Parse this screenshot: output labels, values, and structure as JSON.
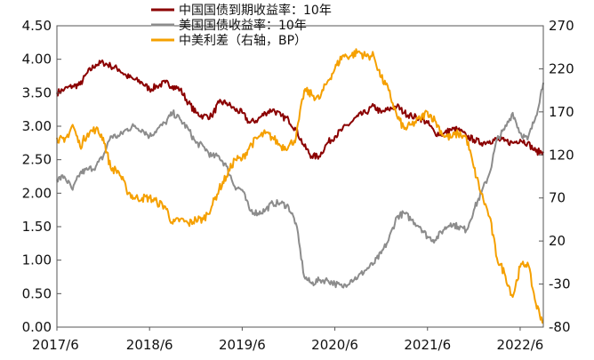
{
  "chart_data": {
    "type": "line",
    "title": "",
    "legend": {
      "placement": "top-center",
      "entries": [
        {
          "name": "中国国债到期收益率：10年",
          "color": "#8B0000"
        },
        {
          "name": "美国国债收益率：10年",
          "color": "#8C8C8C"
        },
        {
          "name": "中美利差（右轴，BP）",
          "color": "#F5A000"
        }
      ]
    },
    "x_tick_labels": [
      "2017/6",
      "2018/6",
      "2019/6",
      "2020/6",
      "2021/6",
      "2022/6"
    ],
    "y_left": {
      "ticks": [
        "0.00",
        "0.50",
        "1.00",
        "1.50",
        "2.00",
        "2.50",
        "3.00",
        "3.50",
        "4.00",
        "4.50"
      ],
      "range": [
        0,
        4.5
      ]
    },
    "y_right": {
      "ticks": [
        "-80",
        "-30",
        "20",
        "70",
        "120",
        "170",
        "220",
        "270"
      ],
      "range": [
        -80,
        270
      ]
    },
    "x_range": [
      2017.5,
      2022.75
    ],
    "grid": false,
    "series": [
      {
        "name": "中国国债到期收益率：10年",
        "color": "#8B0000",
        "axis": "left",
        "points": [
          [
            2017.5,
            3.5
          ],
          [
            2017.58,
            3.55
          ],
          [
            2017.67,
            3.6
          ],
          [
            2017.75,
            3.62
          ],
          [
            2017.83,
            3.8
          ],
          [
            2017.92,
            3.92
          ],
          [
            2018.0,
            3.95
          ],
          [
            2018.08,
            3.9
          ],
          [
            2018.17,
            3.85
          ],
          [
            2018.25,
            3.75
          ],
          [
            2018.33,
            3.7
          ],
          [
            2018.42,
            3.65
          ],
          [
            2018.5,
            3.55
          ],
          [
            2018.58,
            3.6
          ],
          [
            2018.67,
            3.65
          ],
          [
            2018.75,
            3.6
          ],
          [
            2018.83,
            3.55
          ],
          [
            2018.92,
            3.35
          ],
          [
            2019.0,
            3.2
          ],
          [
            2019.08,
            3.15
          ],
          [
            2019.17,
            3.15
          ],
          [
            2019.25,
            3.35
          ],
          [
            2019.33,
            3.35
          ],
          [
            2019.42,
            3.25
          ],
          [
            2019.5,
            3.2
          ],
          [
            2019.58,
            3.05
          ],
          [
            2019.67,
            3.1
          ],
          [
            2019.75,
            3.2
          ],
          [
            2019.83,
            3.25
          ],
          [
            2019.92,
            3.15
          ],
          [
            2020.0,
            3.1
          ],
          [
            2020.08,
            2.95
          ],
          [
            2020.17,
            2.7
          ],
          [
            2020.25,
            2.55
          ],
          [
            2020.33,
            2.55
          ],
          [
            2020.42,
            2.75
          ],
          [
            2020.5,
            2.85
          ],
          [
            2020.58,
            2.95
          ],
          [
            2020.67,
            3.05
          ],
          [
            2020.75,
            3.15
          ],
          [
            2020.83,
            3.2
          ],
          [
            2020.92,
            3.3
          ],
          [
            2021.0,
            3.2
          ],
          [
            2021.08,
            3.25
          ],
          [
            2021.17,
            3.3
          ],
          [
            2021.25,
            3.2
          ],
          [
            2021.33,
            3.15
          ],
          [
            2021.42,
            3.12
          ],
          [
            2021.5,
            3.05
          ],
          [
            2021.58,
            2.9
          ],
          [
            2021.67,
            2.88
          ],
          [
            2021.75,
            2.95
          ],
          [
            2021.83,
            2.95
          ],
          [
            2021.92,
            2.85
          ],
          [
            2022.0,
            2.8
          ],
          [
            2022.08,
            2.75
          ],
          [
            2022.17,
            2.78
          ],
          [
            2022.25,
            2.8
          ],
          [
            2022.33,
            2.78
          ],
          [
            2022.42,
            2.75
          ],
          [
            2022.5,
            2.8
          ],
          [
            2022.58,
            2.75
          ],
          [
            2022.67,
            2.62
          ],
          [
            2022.75,
            2.62
          ]
        ]
      },
      {
        "name": "美国国债收益率：10年",
        "color": "#8C8C8C",
        "axis": "left",
        "points": [
          [
            2017.5,
            2.2
          ],
          [
            2017.58,
            2.25
          ],
          [
            2017.67,
            2.05
          ],
          [
            2017.75,
            2.3
          ],
          [
            2017.83,
            2.35
          ],
          [
            2017.92,
            2.4
          ],
          [
            2018.0,
            2.55
          ],
          [
            2018.08,
            2.85
          ],
          [
            2018.17,
            2.85
          ],
          [
            2018.25,
            2.95
          ],
          [
            2018.33,
            3.0
          ],
          [
            2018.42,
            2.95
          ],
          [
            2018.5,
            2.85
          ],
          [
            2018.58,
            2.95
          ],
          [
            2018.67,
            3.05
          ],
          [
            2018.75,
            3.2
          ],
          [
            2018.83,
            3.1
          ],
          [
            2018.92,
            2.95
          ],
          [
            2019.0,
            2.75
          ],
          [
            2019.08,
            2.7
          ],
          [
            2019.17,
            2.55
          ],
          [
            2019.25,
            2.55
          ],
          [
            2019.33,
            2.4
          ],
          [
            2019.42,
            2.1
          ],
          [
            2019.5,
            2.05
          ],
          [
            2019.58,
            1.75
          ],
          [
            2019.67,
            1.7
          ],
          [
            2019.75,
            1.75
          ],
          [
            2019.83,
            1.85
          ],
          [
            2019.92,
            1.85
          ],
          [
            2020.0,
            1.8
          ],
          [
            2020.08,
            1.55
          ],
          [
            2020.17,
            0.75
          ],
          [
            2020.25,
            0.65
          ],
          [
            2020.33,
            0.7
          ],
          [
            2020.42,
            0.7
          ],
          [
            2020.5,
            0.65
          ],
          [
            2020.58,
            0.6
          ],
          [
            2020.67,
            0.7
          ],
          [
            2020.75,
            0.75
          ],
          [
            2020.83,
            0.85
          ],
          [
            2020.92,
            0.95
          ],
          [
            2021.0,
            1.1
          ],
          [
            2021.08,
            1.3
          ],
          [
            2021.17,
            1.65
          ],
          [
            2021.25,
            1.7
          ],
          [
            2021.33,
            1.6
          ],
          [
            2021.42,
            1.5
          ],
          [
            2021.5,
            1.35
          ],
          [
            2021.58,
            1.3
          ],
          [
            2021.67,
            1.45
          ],
          [
            2021.75,
            1.55
          ],
          [
            2021.83,
            1.5
          ],
          [
            2021.92,
            1.45
          ],
          [
            2022.0,
            1.75
          ],
          [
            2022.08,
            2.0
          ],
          [
            2022.17,
            2.3
          ],
          [
            2022.25,
            2.8
          ],
          [
            2022.33,
            2.95
          ],
          [
            2022.42,
            3.2
          ],
          [
            2022.5,
            2.9
          ],
          [
            2022.58,
            2.8
          ],
          [
            2022.67,
            3.15
          ],
          [
            2022.75,
            3.65
          ]
        ]
      },
      {
        "name": "中美利差（右轴，BP）",
        "color": "#F5A000",
        "axis": "right",
        "points": [
          [
            2017.5,
            140
          ],
          [
            2017.58,
            135
          ],
          [
            2017.67,
            155
          ],
          [
            2017.75,
            130
          ],
          [
            2017.83,
            145
          ],
          [
            2017.92,
            150
          ],
          [
            2018.0,
            140
          ],
          [
            2018.08,
            105
          ],
          [
            2018.17,
            100
          ],
          [
            2018.25,
            80
          ],
          [
            2018.33,
            70
          ],
          [
            2018.42,
            70
          ],
          [
            2018.5,
            70
          ],
          [
            2018.58,
            65
          ],
          [
            2018.67,
            60
          ],
          [
            2018.75,
            40
          ],
          [
            2018.83,
            45
          ],
          [
            2018.92,
            40
          ],
          [
            2019.0,
            45
          ],
          [
            2019.08,
            45
          ],
          [
            2019.17,
            60
          ],
          [
            2019.25,
            80
          ],
          [
            2019.33,
            95
          ],
          [
            2019.42,
            115
          ],
          [
            2019.5,
            115
          ],
          [
            2019.58,
            130
          ],
          [
            2019.67,
            140
          ],
          [
            2019.75,
            145
          ],
          [
            2019.83,
            140
          ],
          [
            2019.92,
            130
          ],
          [
            2020.0,
            130
          ],
          [
            2020.08,
            140
          ],
          [
            2020.17,
            195
          ],
          [
            2020.25,
            190
          ],
          [
            2020.33,
            185
          ],
          [
            2020.42,
            205
          ],
          [
            2020.5,
            220
          ],
          [
            2020.58,
            235
          ],
          [
            2020.67,
            235
          ],
          [
            2020.75,
            240
          ],
          [
            2020.83,
            235
          ],
          [
            2020.92,
            235
          ],
          [
            2021.0,
            210
          ],
          [
            2021.08,
            195
          ],
          [
            2021.17,
            165
          ],
          [
            2021.25,
            150
          ],
          [
            2021.33,
            155
          ],
          [
            2021.42,
            162
          ],
          [
            2021.5,
            170
          ],
          [
            2021.58,
            160
          ],
          [
            2021.67,
            143
          ],
          [
            2021.75,
            140
          ],
          [
            2021.83,
            145
          ],
          [
            2021.92,
            140
          ],
          [
            2022.0,
            105
          ],
          [
            2022.08,
            75
          ],
          [
            2022.17,
            48
          ],
          [
            2022.25,
            0
          ],
          [
            2022.33,
            -17
          ],
          [
            2022.42,
            -45
          ],
          [
            2022.5,
            -10
          ],
          [
            2022.58,
            -5
          ],
          [
            2022.67,
            -53
          ],
          [
            2022.75,
            -75
          ]
        ]
      }
    ]
  }
}
